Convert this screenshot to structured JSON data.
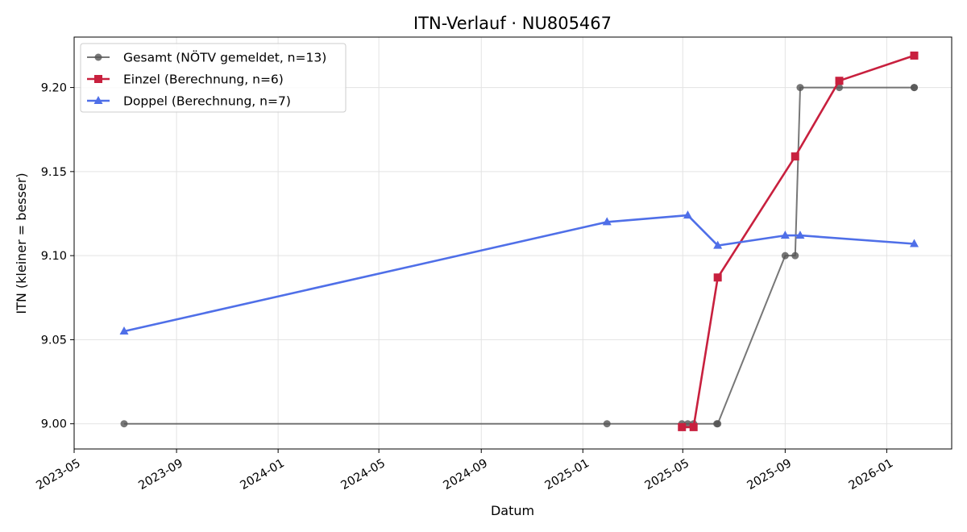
{
  "chart_data": {
    "type": "line",
    "title": "ITN-Verlauf · NU805467",
    "xlabel": "Datum",
    "ylabel": "ITN  (kleiner = besser)",
    "xlim": [
      "2023-05-01",
      "2026-03-20"
    ],
    "ylim": [
      8.985,
      9.23
    ],
    "x_ticks": [
      "2023-05",
      "2023-09",
      "2024-01",
      "2024-05",
      "2024-09",
      "2025-01",
      "2025-05",
      "2025-09",
      "2026-01"
    ],
    "y_ticks": [
      9.0,
      9.05,
      9.1,
      9.15,
      9.2
    ],
    "y_tick_labels": [
      "9.00",
      "9.05",
      "9.10",
      "9.15",
      "9.20"
    ],
    "grid": true,
    "legend_position": "top-left",
    "series": [
      {
        "name": "Gesamt (NÖTV gemeldet, n=13)",
        "color": "#555555",
        "marker": "circle",
        "x": [
          "2023-06-30",
          "2025-01-30",
          "2025-04-30",
          "2025-05-07",
          "2025-05-14",
          "2025-06-11",
          "2025-06-12",
          "2025-09-01",
          "2025-09-13",
          "2025-09-19",
          "2025-11-05",
          "2026-02-03",
          "2026-02-03"
        ],
        "y": [
          9.0,
          9.0,
          9.0,
          9.0,
          9.0,
          9.0,
          9.0,
          9.1,
          9.1,
          9.2,
          9.2,
          9.2,
          9.2
        ]
      },
      {
        "name": "Einzel (Berechnung, n=6)",
        "color": "#c8203e",
        "marker": "square",
        "x": [
          "2025-04-30",
          "2025-05-14",
          "2025-06-12",
          "2025-09-13",
          "2025-11-05",
          "2026-02-03"
        ],
        "y": [
          8.998,
          8.998,
          9.087,
          9.159,
          9.204,
          9.219
        ]
      },
      {
        "name": "Doppel (Berechnung, n=7)",
        "color": "#4f6fe8",
        "marker": "triangle",
        "x": [
          "2023-06-30",
          "2025-01-30",
          "2025-05-07",
          "2025-06-12",
          "2025-09-01",
          "2025-09-19",
          "2026-02-03"
        ],
        "y": [
          9.055,
          9.12,
          9.124,
          9.106,
          9.112,
          9.112,
          9.107
        ]
      }
    ]
  }
}
